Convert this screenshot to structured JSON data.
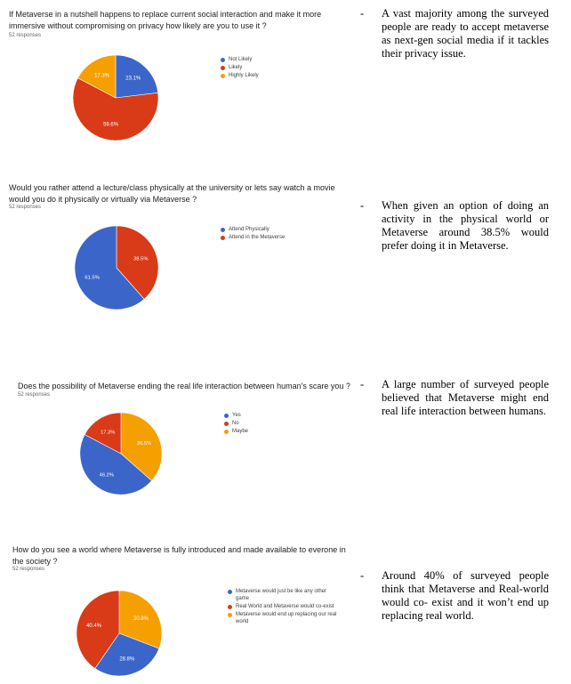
{
  "colors": {
    "blue": "#3b65c8",
    "red": "#d93a17",
    "orange": "#f59f00"
  },
  "chart_data": [
    {
      "type": "pie",
      "title": "If Metaverse in a nutshell happens to replace current social interaction and make it more immersive without compromising on privacy how likely are you to use it ?",
      "responses": "52 responses",
      "slices": [
        {
          "label": "Not Likely",
          "value": 23.1,
          "display": "23.1%",
          "color": "#3b65c8"
        },
        {
          "label": "Likely",
          "value": 59.6,
          "display": "59.6%",
          "color": "#d93a17"
        },
        {
          "label": "Highly Likely",
          "value": 17.3,
          "display": "17.3%",
          "color": "#f59f00"
        }
      ],
      "legend_position": "right",
      "note": "A vast majority among the surveyed people are ready to accept metaverse as next-gen social media if it tackles their privacy issue."
    },
    {
      "type": "pie",
      "title": "Would you rather attend a lecture/class physically at the university or lets say watch a movie would you do it physically or virtually via Metaverse ?",
      "responses": "52 responses",
      "slices": [
        {
          "label": "Attend Physically",
          "value": 61.5,
          "display": "61.5%",
          "color": "#3b65c8"
        },
        {
          "label": "Attend in the Metaverse",
          "value": 38.5,
          "display": "38.5%",
          "color": "#d93a17"
        }
      ],
      "legend_position": "right",
      "note": "When given an option of doing an activity in the physical world or Metaverse around 38.5% would prefer doing it in Metaverse."
    },
    {
      "type": "pie",
      "title": "Does the possibility of Metaverse ending the real life interaction between human's scare you ?",
      "responses": "52 responses",
      "slices": [
        {
          "label": "Yes",
          "value": 46.2,
          "display": "46.2%",
          "color": "#3b65c8"
        },
        {
          "label": "No",
          "value": 17.3,
          "display": "17.3%",
          "color": "#d93a17"
        },
        {
          "label": "Maybe",
          "value": 36.5,
          "display": "36.5%",
          "color": "#f59f00"
        }
      ],
      "legend_position": "right",
      "note": "A large number of surveyed people believed that Metaverse might end real life interaction between humans."
    },
    {
      "type": "pie",
      "title": "How do you see a world where Metaverse is fully introduced and made available to everone in the society ?",
      "responses": "52 responses",
      "slices": [
        {
          "label": "Metaverse would just be like any other game",
          "value": 28.8,
          "display": "28.8%",
          "color": "#3b65c8"
        },
        {
          "label": "Real World and Metaverse would co-exist",
          "value": 40.4,
          "display": "40.4%",
          "color": "#d93a17"
        },
        {
          "label": "Metaverse would end up replacing our real world",
          "value": 30.8,
          "display": "30.8%",
          "color": "#f59f00"
        }
      ],
      "legend_position": "right",
      "note": "Around 40% of surveyed people think that Metaverse and Real-world would co- exist and it won’t end up replacing real world."
    }
  ],
  "dash": "-"
}
